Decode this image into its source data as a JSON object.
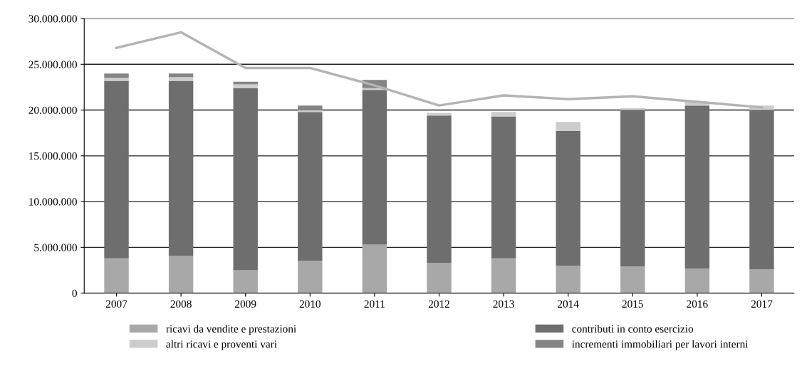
{
  "chart_data": {
    "type": "bar",
    "stacked": true,
    "categories": [
      "2007",
      "2008",
      "2009",
      "2010",
      "2011",
      "2012",
      "2013",
      "2014",
      "2015",
      "2016",
      "2017"
    ],
    "series": [
      {
        "name": "ricavi da vendite e prestazioni",
        "color": "#a8a8a8",
        "values": [
          3800000,
          4100000,
          2500000,
          3500000,
          5300000,
          3300000,
          3800000,
          3000000,
          2900000,
          2700000,
          2600000
        ]
      },
      {
        "name": "contributi in conto esercizio",
        "color": "#6e6e6e",
        "values": [
          19400000,
          19100000,
          19900000,
          16300000,
          16900000,
          16100000,
          15500000,
          14700000,
          17100000,
          17800000,
          17400000
        ]
      },
      {
        "name": "altri ricavi e proventi vari",
        "color": "#cdcdcd",
        "values": [
          300000,
          400000,
          400000,
          200000,
          200000,
          300000,
          500000,
          1000000,
          200000,
          400000,
          500000
        ]
      },
      {
        "name": "incrementi immobiliari per lavori interni",
        "color": "#858585",
        "values": [
          500000,
          400000,
          300000,
          500000,
          900000,
          null,
          null,
          null,
          null,
          null,
          null
        ]
      },
      {
        "type": "line",
        "color": "#b4b4b4",
        "values": [
          26800000,
          28500000,
          24600000,
          24600000,
          22700000,
          20500000,
          21600000,
          21200000,
          21500000,
          20900000,
          20300000
        ]
      }
    ],
    "ylim": [
      0,
      30000000
    ],
    "yticks": [
      {
        "value": 0,
        "label": "0"
      },
      {
        "value": 5000000,
        "label": "5.000.000"
      },
      {
        "value": 10000000,
        "label": "10.000.000"
      },
      {
        "value": 15000000,
        "label": "15.000.000"
      },
      {
        "value": 20000000,
        "label": "20.000.000"
      },
      {
        "value": 25000000,
        "label": "25.000.000"
      },
      {
        "value": 30000000,
        "label": "30.000.000"
      }
    ],
    "grid": "y",
    "legend": "bottom"
  }
}
